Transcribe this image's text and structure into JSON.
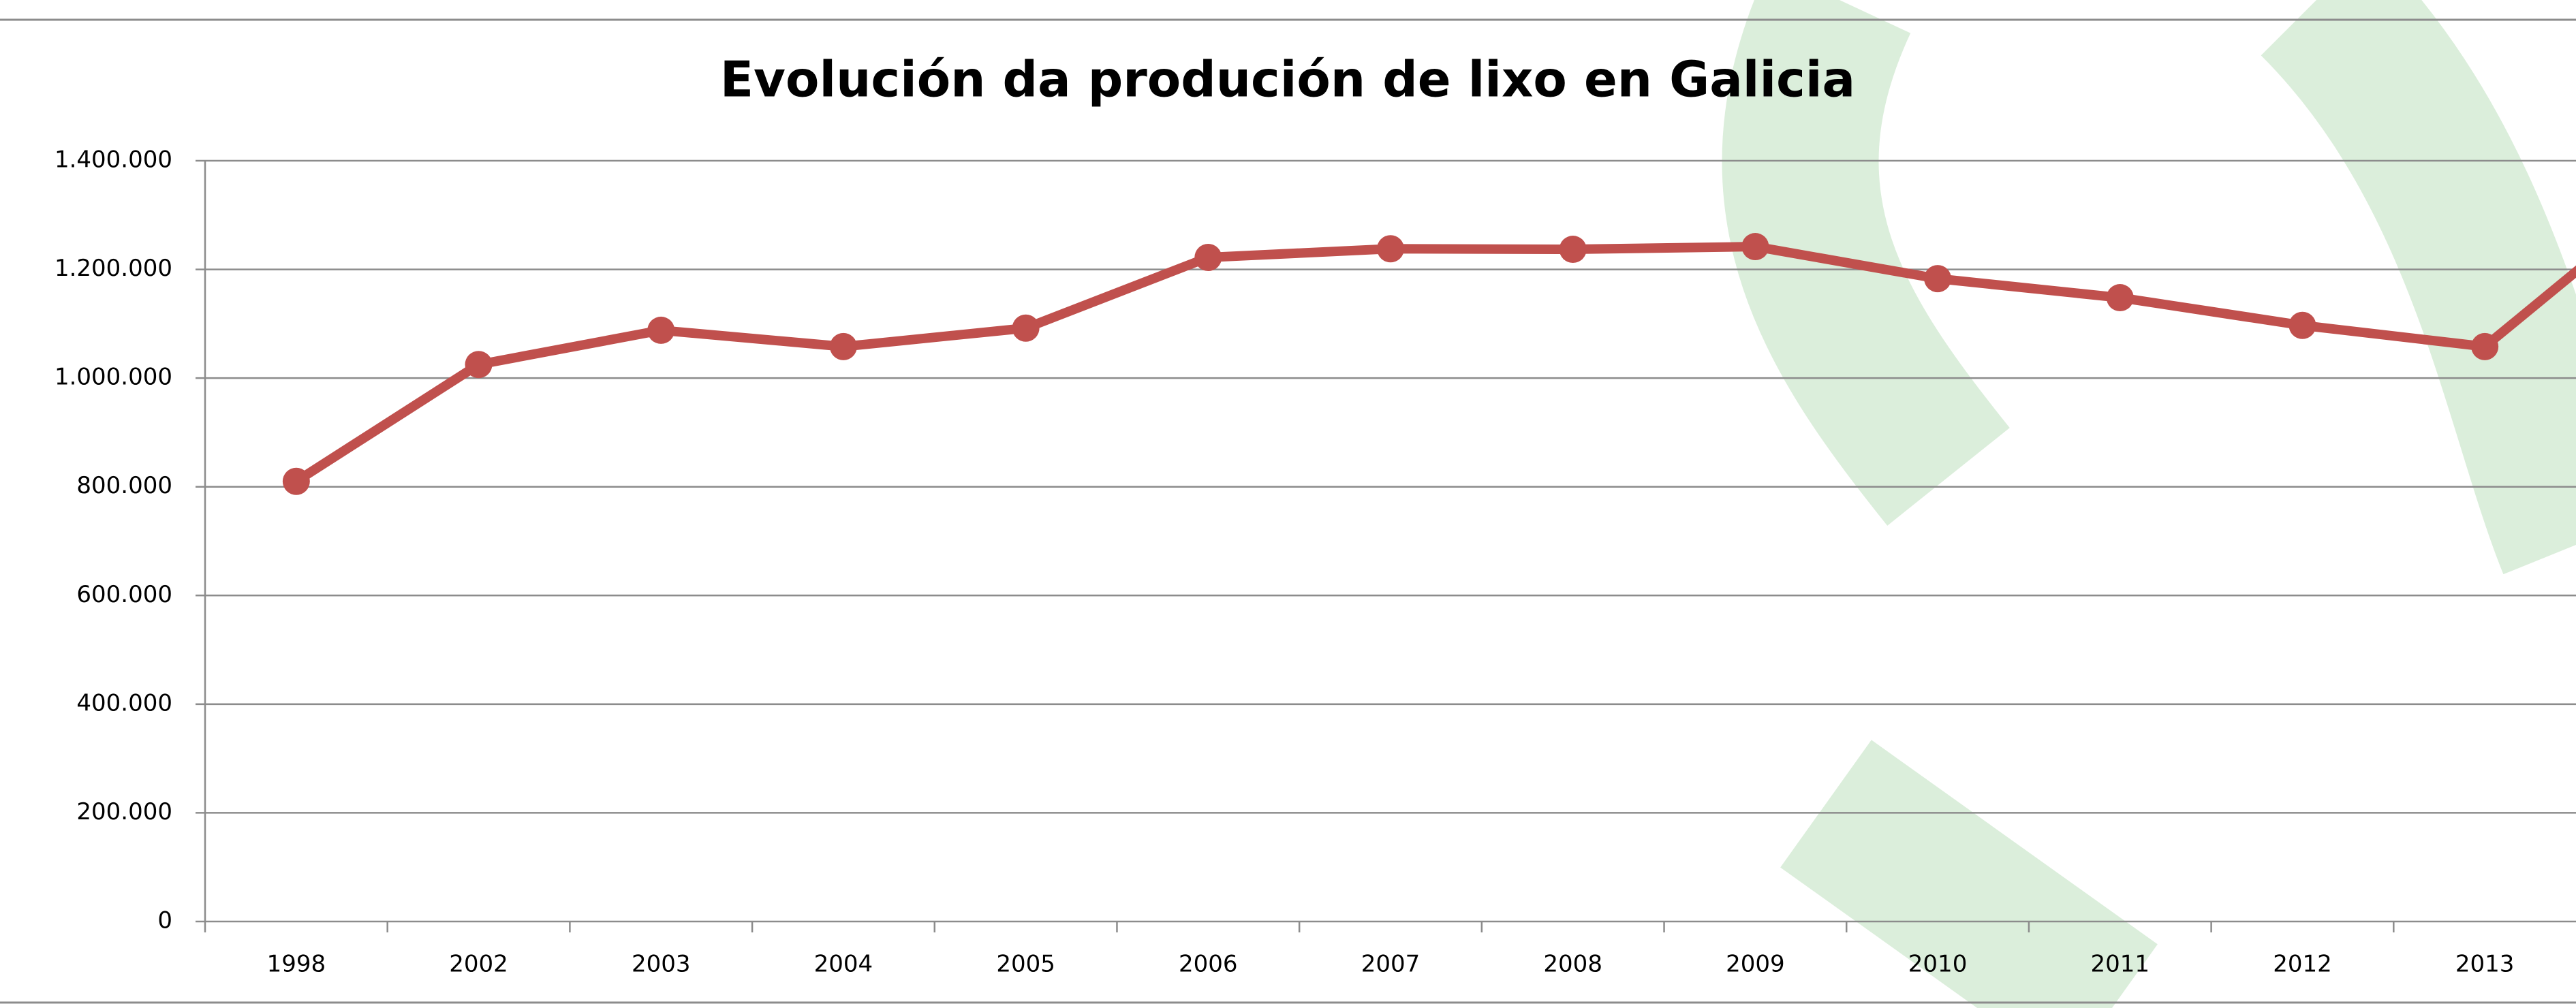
{
  "chart_data": {
    "type": "line",
    "title": "Evolución da produción de lixo en Galicia",
    "categories": [
      "1998",
      "2002",
      "2003",
      "2004",
      "2005",
      "2006",
      "2007",
      "2008",
      "2009",
      "2010",
      "2011",
      "2012",
      "2013"
    ],
    "series": [
      {
        "color": "#c0504d",
        "values": [
          810000,
          1025000,
          1088000,
          1058000,
          1092000,
          1222000,
          1238000,
          1237000,
          1242000,
          1183000,
          1148000,
          1097000,
          1058000
        ]
      }
    ],
    "ylim": [
      0,
      1400000
    ],
    "yticks": [
      0,
      {
        "value": 200000,
        "label": "200.000"
      },
      {
        "value": 400000,
        "label": "400.000"
      },
      {
        "value": 600000,
        "label": "600.000"
      },
      {
        "value": 800000,
        "label": "800.000"
      },
      {
        "value": 1000000,
        "label": "1.000.000"
      },
      {
        "value": 1200000,
        "label": "1.200.000"
      },
      {
        "value": 1400000,
        "label": "1.400.000"
      }
    ],
    "grid": true
  }
}
